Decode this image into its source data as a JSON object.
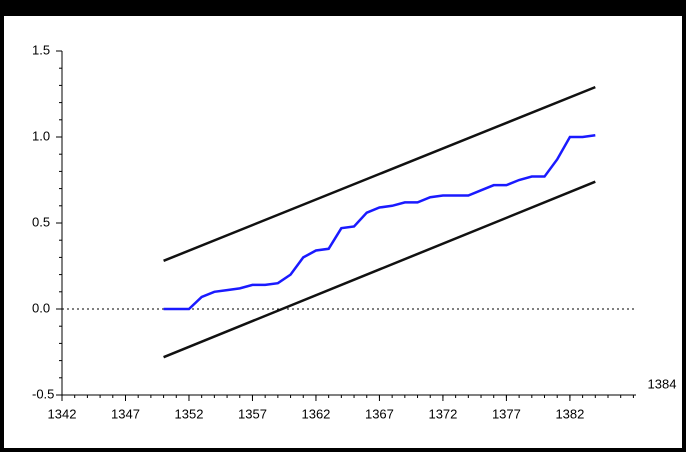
{
  "chart_data": {
    "type": "line",
    "xlim": [
      1342,
      1385
    ],
    "xticks": [
      1342,
      1347,
      1352,
      1357,
      1362,
      1367,
      1372,
      1377,
      1382
    ],
    "xlabel": "1384",
    "ylim": [
      -0.5,
      1.5
    ],
    "yticks": [
      -0.5,
      {
        "value": 0,
        "label": "0.0"
      },
      0.5,
      {
        "value": 1,
        "label": "1.0"
      },
      1.5
    ],
    "reference_line": 0,
    "series": [
      {
        "color": "#1a1aff",
        "x": [
          1350,
          1351,
          1352,
          1353,
          1354,
          1355,
          1356,
          1357,
          1358,
          1359,
          1360,
          1361,
          1362,
          1363,
          1364,
          1365,
          1366,
          1367,
          1368,
          1369,
          1370,
          1371,
          1372,
          1373,
          1374,
          1375,
          1376,
          1377,
          1378,
          1379,
          1380,
          1381,
          1382,
          1383,
          1384
        ],
        "values": [
          0,
          0,
          0,
          0.07,
          0.1,
          0.11,
          0.12,
          0.14,
          0.14,
          0.15,
          0.2,
          0.3,
          0.34,
          0.35,
          0.47,
          0.48,
          0.56,
          0.59,
          0.6,
          0.62,
          0.62,
          0.65,
          0.66,
          0.66,
          0.66,
          0.69,
          0.72,
          0.72,
          0.75,
          0.77,
          0.77,
          0.87,
          1.0,
          1.0,
          1.01
        ]
      },
      {
        "color": "#111111",
        "x": [
          1350,
          1384
        ],
        "values": [
          0.28,
          1.29
        ]
      },
      {
        "color": "#111111",
        "x": [
          1350,
          1384
        ],
        "values": [
          -0.28,
          0.74
        ]
      }
    ]
  }
}
